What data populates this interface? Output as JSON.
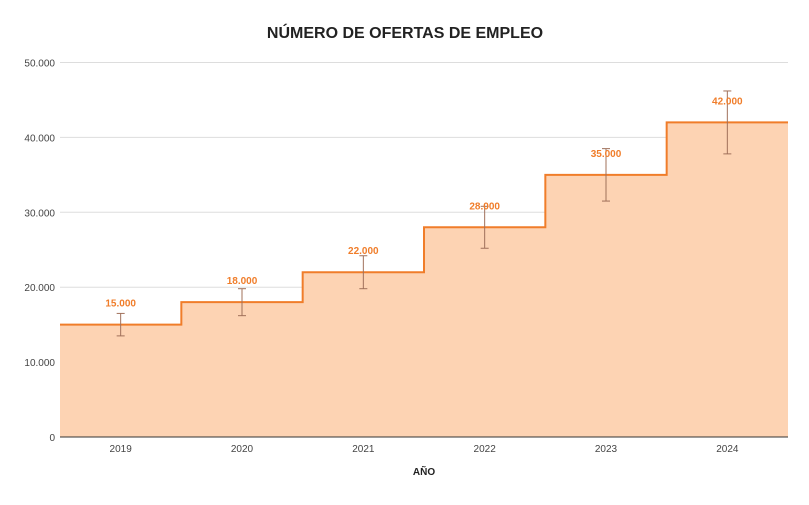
{
  "chart_data": {
    "type": "area",
    "subtype": "stepped",
    "title": "NÚMERO DE OFERTAS DE EMPLEO",
    "xlabel": "AÑO",
    "ylabel": "",
    "categories": [
      "2019",
      "2020",
      "2021",
      "2022",
      "2023",
      "2024"
    ],
    "values": [
      15000,
      18000,
      22000,
      28000,
      35000,
      42000
    ],
    "data_labels": [
      "15.000",
      "18.000",
      "22.000",
      "28.000",
      "35.000",
      "42.000"
    ],
    "error_bars": {
      "type": "percent",
      "value": 10
    },
    "ylim": [
      0,
      50000
    ],
    "yticks": [
      0,
      10000,
      20000,
      30000,
      40000,
      50000
    ],
    "ytick_labels": [
      "0",
      "10.000",
      "20.000",
      "30.000",
      "40.000",
      "50.000"
    ],
    "grid": true,
    "legend": "none",
    "colors": {
      "line": "#f07d2a",
      "fill": "#fdd3b3",
      "label": "#f07d2a",
      "error_bar": "#a0705a",
      "grid": "#dddddd"
    }
  }
}
